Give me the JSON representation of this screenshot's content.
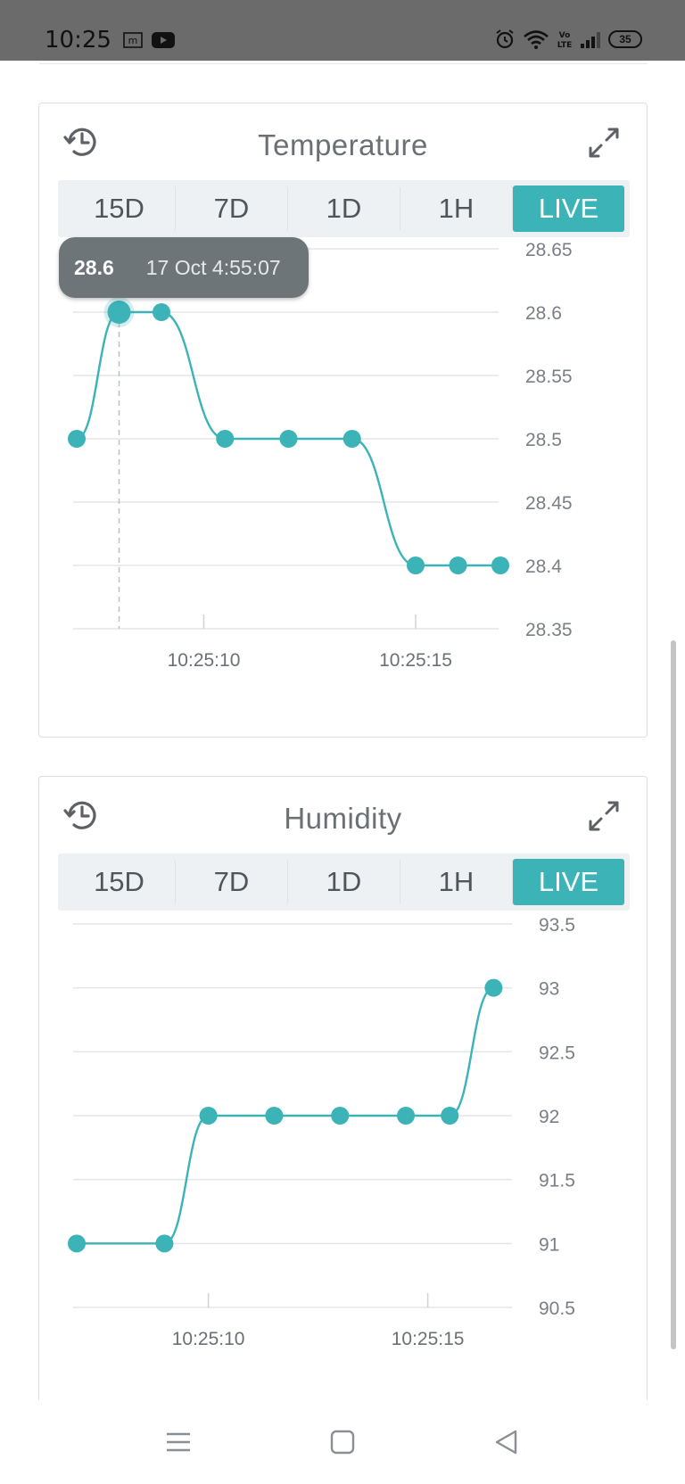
{
  "status_bar": {
    "time": "10:25",
    "battery": "35",
    "icons": [
      "m-badge-icon",
      "youtube-icon",
      "alarm-icon",
      "wifi-icon",
      "volte-icon",
      "signal-icon",
      "battery-icon"
    ]
  },
  "colors": {
    "accent": "#3bb3b7",
    "grid": "#e3e6e9",
    "tooltip_bg": "#6d7579"
  },
  "temperature": {
    "title": "Temperature",
    "tabs": [
      "15D",
      "7D",
      "1D",
      "1H",
      "LIVE"
    ],
    "active_tab": "LIVE",
    "tooltip": {
      "value": "28.6",
      "timestamp": "17 Oct 4:55:07"
    }
  },
  "humidity": {
    "title": "Humidity",
    "tabs": [
      "15D",
      "7D",
      "1D",
      "1H",
      "LIVE"
    ],
    "active_tab": "LIVE"
  },
  "chart_data": [
    {
      "type": "line",
      "title": "Temperature",
      "x": [
        "10:25:07",
        "10:25:08",
        "10:25:09",
        "10:25:10.5",
        "10:25:12",
        "10:25:13.5",
        "10:25:15",
        "10:25:16",
        "10:25:17"
      ],
      "y": [
        28.5,
        28.6,
        28.6,
        28.5,
        28.5,
        28.5,
        28.4,
        28.4,
        28.4
      ],
      "highlighted_index": 1,
      "x_ticks": [
        "10:25:10",
        "10:25:15"
      ],
      "y_ticks": [
        "28.65",
        "28.6",
        "28.55",
        "28.5",
        "28.45",
        "28.4",
        "28.35"
      ],
      "ylim": [
        28.35,
        28.65
      ],
      "grid": true
    },
    {
      "type": "line",
      "title": "Humidity",
      "x": [
        "10:25:07",
        "10:25:09",
        "10:25:10",
        "10:25:11.5",
        "10:25:13",
        "10:25:14.5",
        "10:25:15.5",
        "10:25:16.5"
      ],
      "y": [
        91,
        91,
        92,
        92,
        92,
        92,
        92,
        93
      ],
      "x_ticks": [
        "10:25:10",
        "10:25:15"
      ],
      "y_ticks": [
        "93.5",
        "93",
        "92.5",
        "92",
        "91.5",
        "91",
        "90.5"
      ],
      "ylim": [
        90.5,
        93.5
      ],
      "grid": true
    }
  ]
}
